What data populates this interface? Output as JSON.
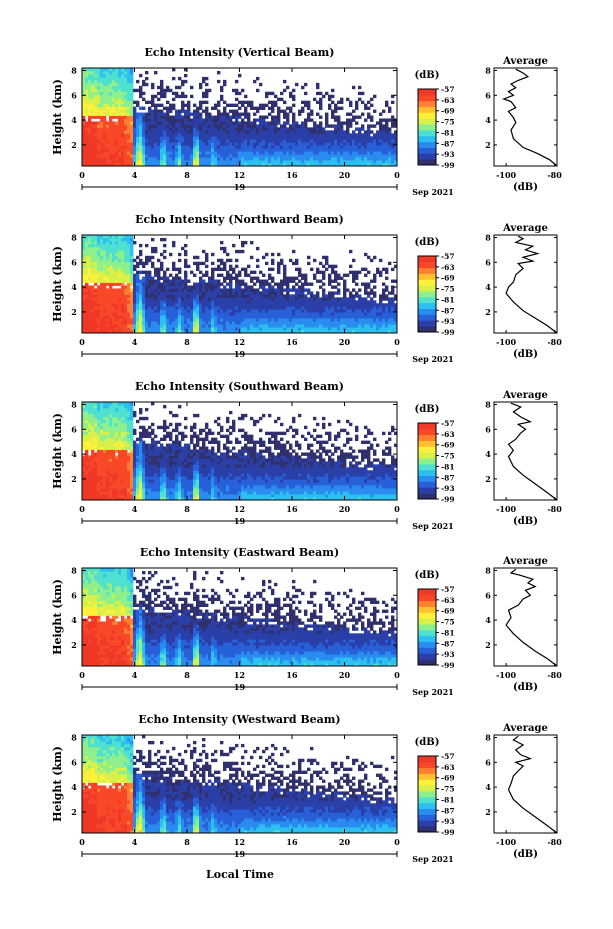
{
  "figure": {
    "xlabel": "Local Time",
    "colormap": [
      "#30306e",
      "#2b3fa8",
      "#2760d8",
      "#2b8cf0",
      "#2cc0f0",
      "#4fe0d0",
      "#8ef08c",
      "#d8f04a",
      "#fff03a",
      "#ffc030",
      "#ff8030",
      "#f84828",
      "#f03828"
    ]
  },
  "chart_data": [
    {
      "type": "heatmap",
      "title": "Echo Intensity (Vertical Beam)",
      "ylabel": "Height (km)",
      "x_ticks": [
        "0",
        "4",
        "8",
        "12",
        "16",
        "20",
        "0"
      ],
      "x_range": [
        0,
        24
      ],
      "date_label": "19",
      "date_suffix": "Sep 2021",
      "y_ticks": [
        "2",
        "4",
        "6",
        "8"
      ],
      "y_range": [
        0.3,
        8.2
      ],
      "colorbar": {
        "unit": "(dB)",
        "ticks": [
          "-57",
          "-63",
          "-69",
          "-75",
          "-81",
          "-87",
          "-93",
          "-99"
        ],
        "range": [
          -99,
          -57
        ]
      },
      "profile": {
        "title": "Average",
        "xlabel": "(dB)",
        "x_ticks": [
          "-100",
          "-80"
        ],
        "x_range": [
          -105,
          -79
        ],
        "y_ticks": [
          "2",
          "4",
          "6",
          "8"
        ],
        "y_range": [
          0.3,
          8.2
        ],
        "points": [
          [
            -79,
            0.3
          ],
          [
            -82,
            0.8
          ],
          [
            -87,
            1.3
          ],
          [
            -93,
            1.8
          ],
          [
            -97,
            2.5
          ],
          [
            -98,
            3.2
          ],
          [
            -96,
            3.8
          ],
          [
            -97,
            4.2
          ],
          [
            -99,
            4.7
          ],
          [
            -96,
            5.0
          ],
          [
            -98,
            5.5
          ],
          [
            -101,
            5.7
          ],
          [
            -97,
            6.0
          ],
          [
            -99,
            6.3
          ],
          [
            -96,
            6.6
          ],
          [
            -98,
            6.9
          ],
          [
            -95,
            7.2
          ],
          [
            -91,
            7.5
          ],
          [
            -93,
            7.8
          ],
          [
            -96,
            8.1
          ]
        ]
      }
    },
    {
      "type": "heatmap",
      "title": "Echo Intensity (Northward Beam)",
      "ylabel": "Height (km)",
      "x_ticks": [
        "0",
        "4",
        "8",
        "12",
        "16",
        "20",
        "0"
      ],
      "x_range": [
        0,
        24
      ],
      "date_label": "19",
      "date_suffix": "Sep 2021",
      "y_ticks": [
        "2",
        "4",
        "6",
        "8"
      ],
      "y_range": [
        0.3,
        8.2
      ],
      "colorbar": {
        "unit": "(dB)",
        "ticks": [
          "-57",
          "-63",
          "-69",
          "-75",
          "-81",
          "-87",
          "-93",
          "-99"
        ],
        "range": [
          -99,
          -57
        ]
      },
      "profile": {
        "title": "Average",
        "xlabel": "(dB)",
        "x_ticks": [
          "-100",
          "-80"
        ],
        "x_range": [
          -105,
          -79
        ],
        "y_ticks": [
          "2",
          "4",
          "6",
          "8"
        ],
        "y_range": [
          0.3,
          8.2
        ],
        "points": [
          [
            -79,
            0.3
          ],
          [
            -83,
            0.9
          ],
          [
            -88,
            1.5
          ],
          [
            -93,
            2.1
          ],
          [
            -97,
            2.8
          ],
          [
            -100,
            3.5
          ],
          [
            -99,
            4.0
          ],
          [
            -97,
            4.4
          ],
          [
            -96,
            5.0
          ],
          [
            -93,
            5.5
          ],
          [
            -95,
            5.9
          ],
          [
            -89,
            6.1
          ],
          [
            -93,
            6.4
          ],
          [
            -87,
            6.7
          ],
          [
            -92,
            7.0
          ],
          [
            -89,
            7.3
          ],
          [
            -96,
            7.6
          ],
          [
            -93,
            7.9
          ],
          [
            -95,
            8.1
          ]
        ]
      }
    },
    {
      "type": "heatmap",
      "title": "Echo Intensity (Southward Beam)",
      "ylabel": "Height (km)",
      "x_ticks": [
        "0",
        "4",
        "8",
        "12",
        "16",
        "20",
        "0"
      ],
      "x_range": [
        0,
        24
      ],
      "date_label": "19",
      "date_suffix": "Sep 2021",
      "y_ticks": [
        "2",
        "4",
        "6",
        "8"
      ],
      "y_range": [
        0.3,
        8.2
      ],
      "colorbar": {
        "unit": "(dB)",
        "ticks": [
          "-57",
          "-63",
          "-69",
          "-75",
          "-81",
          "-87",
          "-93",
          "-99"
        ],
        "range": [
          -99,
          -57
        ]
      },
      "profile": {
        "title": "Average",
        "xlabel": "(dB)",
        "x_ticks": [
          "-100",
          "-80"
        ],
        "x_range": [
          -105,
          -79
        ],
        "y_ticks": [
          "2",
          "4",
          "6",
          "8"
        ],
        "y_range": [
          0.3,
          8.2
        ],
        "points": [
          [
            -79,
            0.3
          ],
          [
            -83,
            0.9
          ],
          [
            -88,
            1.6
          ],
          [
            -93,
            2.3
          ],
          [
            -97,
            3.0
          ],
          [
            -99,
            3.8
          ],
          [
            -97,
            4.3
          ],
          [
            -99,
            4.8
          ],
          [
            -96,
            5.2
          ],
          [
            -94,
            5.7
          ],
          [
            -92,
            6.0
          ],
          [
            -95,
            6.4
          ],
          [
            -90,
            6.6
          ],
          [
            -94,
            7.0
          ],
          [
            -97,
            7.4
          ],
          [
            -94,
            7.8
          ],
          [
            -98,
            8.1
          ]
        ]
      }
    },
    {
      "type": "heatmap",
      "title": "Echo Intensity (Eastward Beam)",
      "ylabel": "Height (km)",
      "x_ticks": [
        "0",
        "4",
        "8",
        "12",
        "16",
        "20",
        "0"
      ],
      "x_range": [
        0,
        24
      ],
      "date_label": "19",
      "date_suffix": "Sep 2021",
      "y_ticks": [
        "2",
        "4",
        "6",
        "8"
      ],
      "y_range": [
        0.3,
        8.2
      ],
      "colorbar": {
        "unit": "(dB)",
        "ticks": [
          "-57",
          "-63",
          "-69",
          "-75",
          "-81",
          "-87",
          "-93",
          "-99"
        ],
        "range": [
          -99,
          -57
        ]
      },
      "profile": {
        "title": "Average",
        "xlabel": "(dB)",
        "x_ticks": [
          "-100",
          "-80"
        ],
        "x_range": [
          -105,
          -79
        ],
        "y_ticks": [
          "2",
          "4",
          "6",
          "8"
        ],
        "y_range": [
          0.3,
          8.2
        ],
        "points": [
          [
            -79,
            0.3
          ],
          [
            -83,
            0.9
          ],
          [
            -88,
            1.5
          ],
          [
            -93,
            2.2
          ],
          [
            -97,
            2.9
          ],
          [
            -100,
            3.6
          ],
          [
            -98,
            4.2
          ],
          [
            -99,
            4.8
          ],
          [
            -95,
            5.2
          ],
          [
            -93,
            5.7
          ],
          [
            -90,
            6.0
          ],
          [
            -92,
            6.4
          ],
          [
            -88,
            6.7
          ],
          [
            -91,
            7.0
          ],
          [
            -89,
            7.3
          ],
          [
            -94,
            7.6
          ],
          [
            -98,
            7.8
          ],
          [
            -96,
            8.1
          ]
        ]
      }
    },
    {
      "type": "heatmap",
      "title": "Echo Intensity (Westward Beam)",
      "ylabel": "Height (km)",
      "x_ticks": [
        "0",
        "4",
        "8",
        "12",
        "16",
        "20",
        "0"
      ],
      "x_range": [
        0,
        24
      ],
      "date_label": "19",
      "date_suffix": "Sep 2021",
      "y_ticks": [
        "2",
        "4",
        "6",
        "8"
      ],
      "y_range": [
        0.3,
        8.2
      ],
      "colorbar": {
        "unit": "(dB)",
        "ticks": [
          "-57",
          "-63",
          "-69",
          "-75",
          "-81",
          "-87",
          "-93",
          "-99"
        ],
        "range": [
          -99,
          -57
        ]
      },
      "profile": {
        "title": "Average",
        "xlabel": "(dB)",
        "x_ticks": [
          "-100",
          "-80"
        ],
        "x_range": [
          -105,
          -79
        ],
        "y_ticks": [
          "2",
          "4",
          "6",
          "8"
        ],
        "y_range": [
          0.3,
          8.2
        ],
        "points": [
          [
            -79,
            0.3
          ],
          [
            -83,
            0.9
          ],
          [
            -88,
            1.6
          ],
          [
            -93,
            2.3
          ],
          [
            -97,
            3.0
          ],
          [
            -99,
            3.8
          ],
          [
            -98,
            4.3
          ],
          [
            -97,
            4.9
          ],
          [
            -95,
            5.3
          ],
          [
            -93,
            5.7
          ],
          [
            -96,
            6.0
          ],
          [
            -90,
            6.3
          ],
          [
            -94,
            6.6
          ],
          [
            -96,
            7.0
          ],
          [
            -93,
            7.4
          ],
          [
            -97,
            7.8
          ],
          [
            -95,
            8.1
          ]
        ]
      }
    }
  ]
}
